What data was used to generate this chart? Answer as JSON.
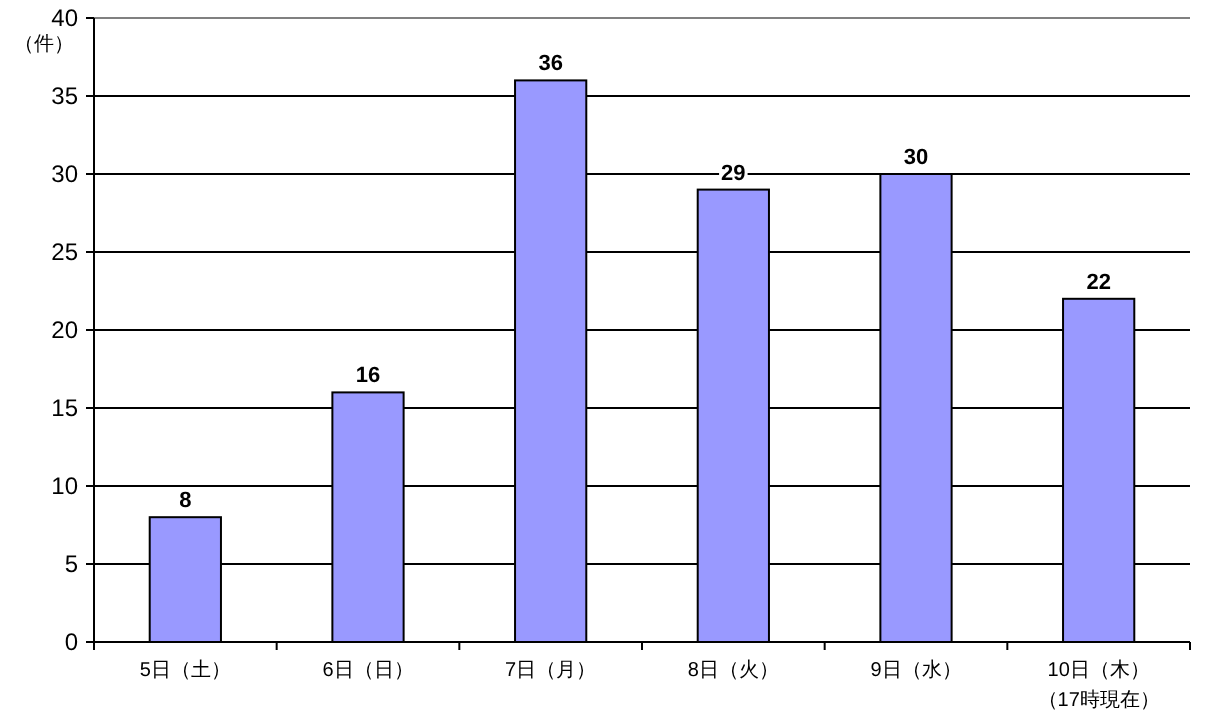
{
  "chart_data": {
    "type": "bar",
    "ylabel": "（件）",
    "categories": [
      "5日（土）",
      "6日（日）",
      "7日（月）",
      "8日（火）",
      "9日（水）",
      "10日（木）（17時現在）"
    ],
    "values": [
      8,
      16,
      36,
      29,
      30,
      22
    ],
    "color": "#9999ff",
    "ylim": [
      0,
      40
    ],
    "yticks": [
      0,
      5,
      10,
      15,
      20,
      25,
      30,
      35,
      40
    ],
    "grid": "y",
    "data_labels": true
  }
}
